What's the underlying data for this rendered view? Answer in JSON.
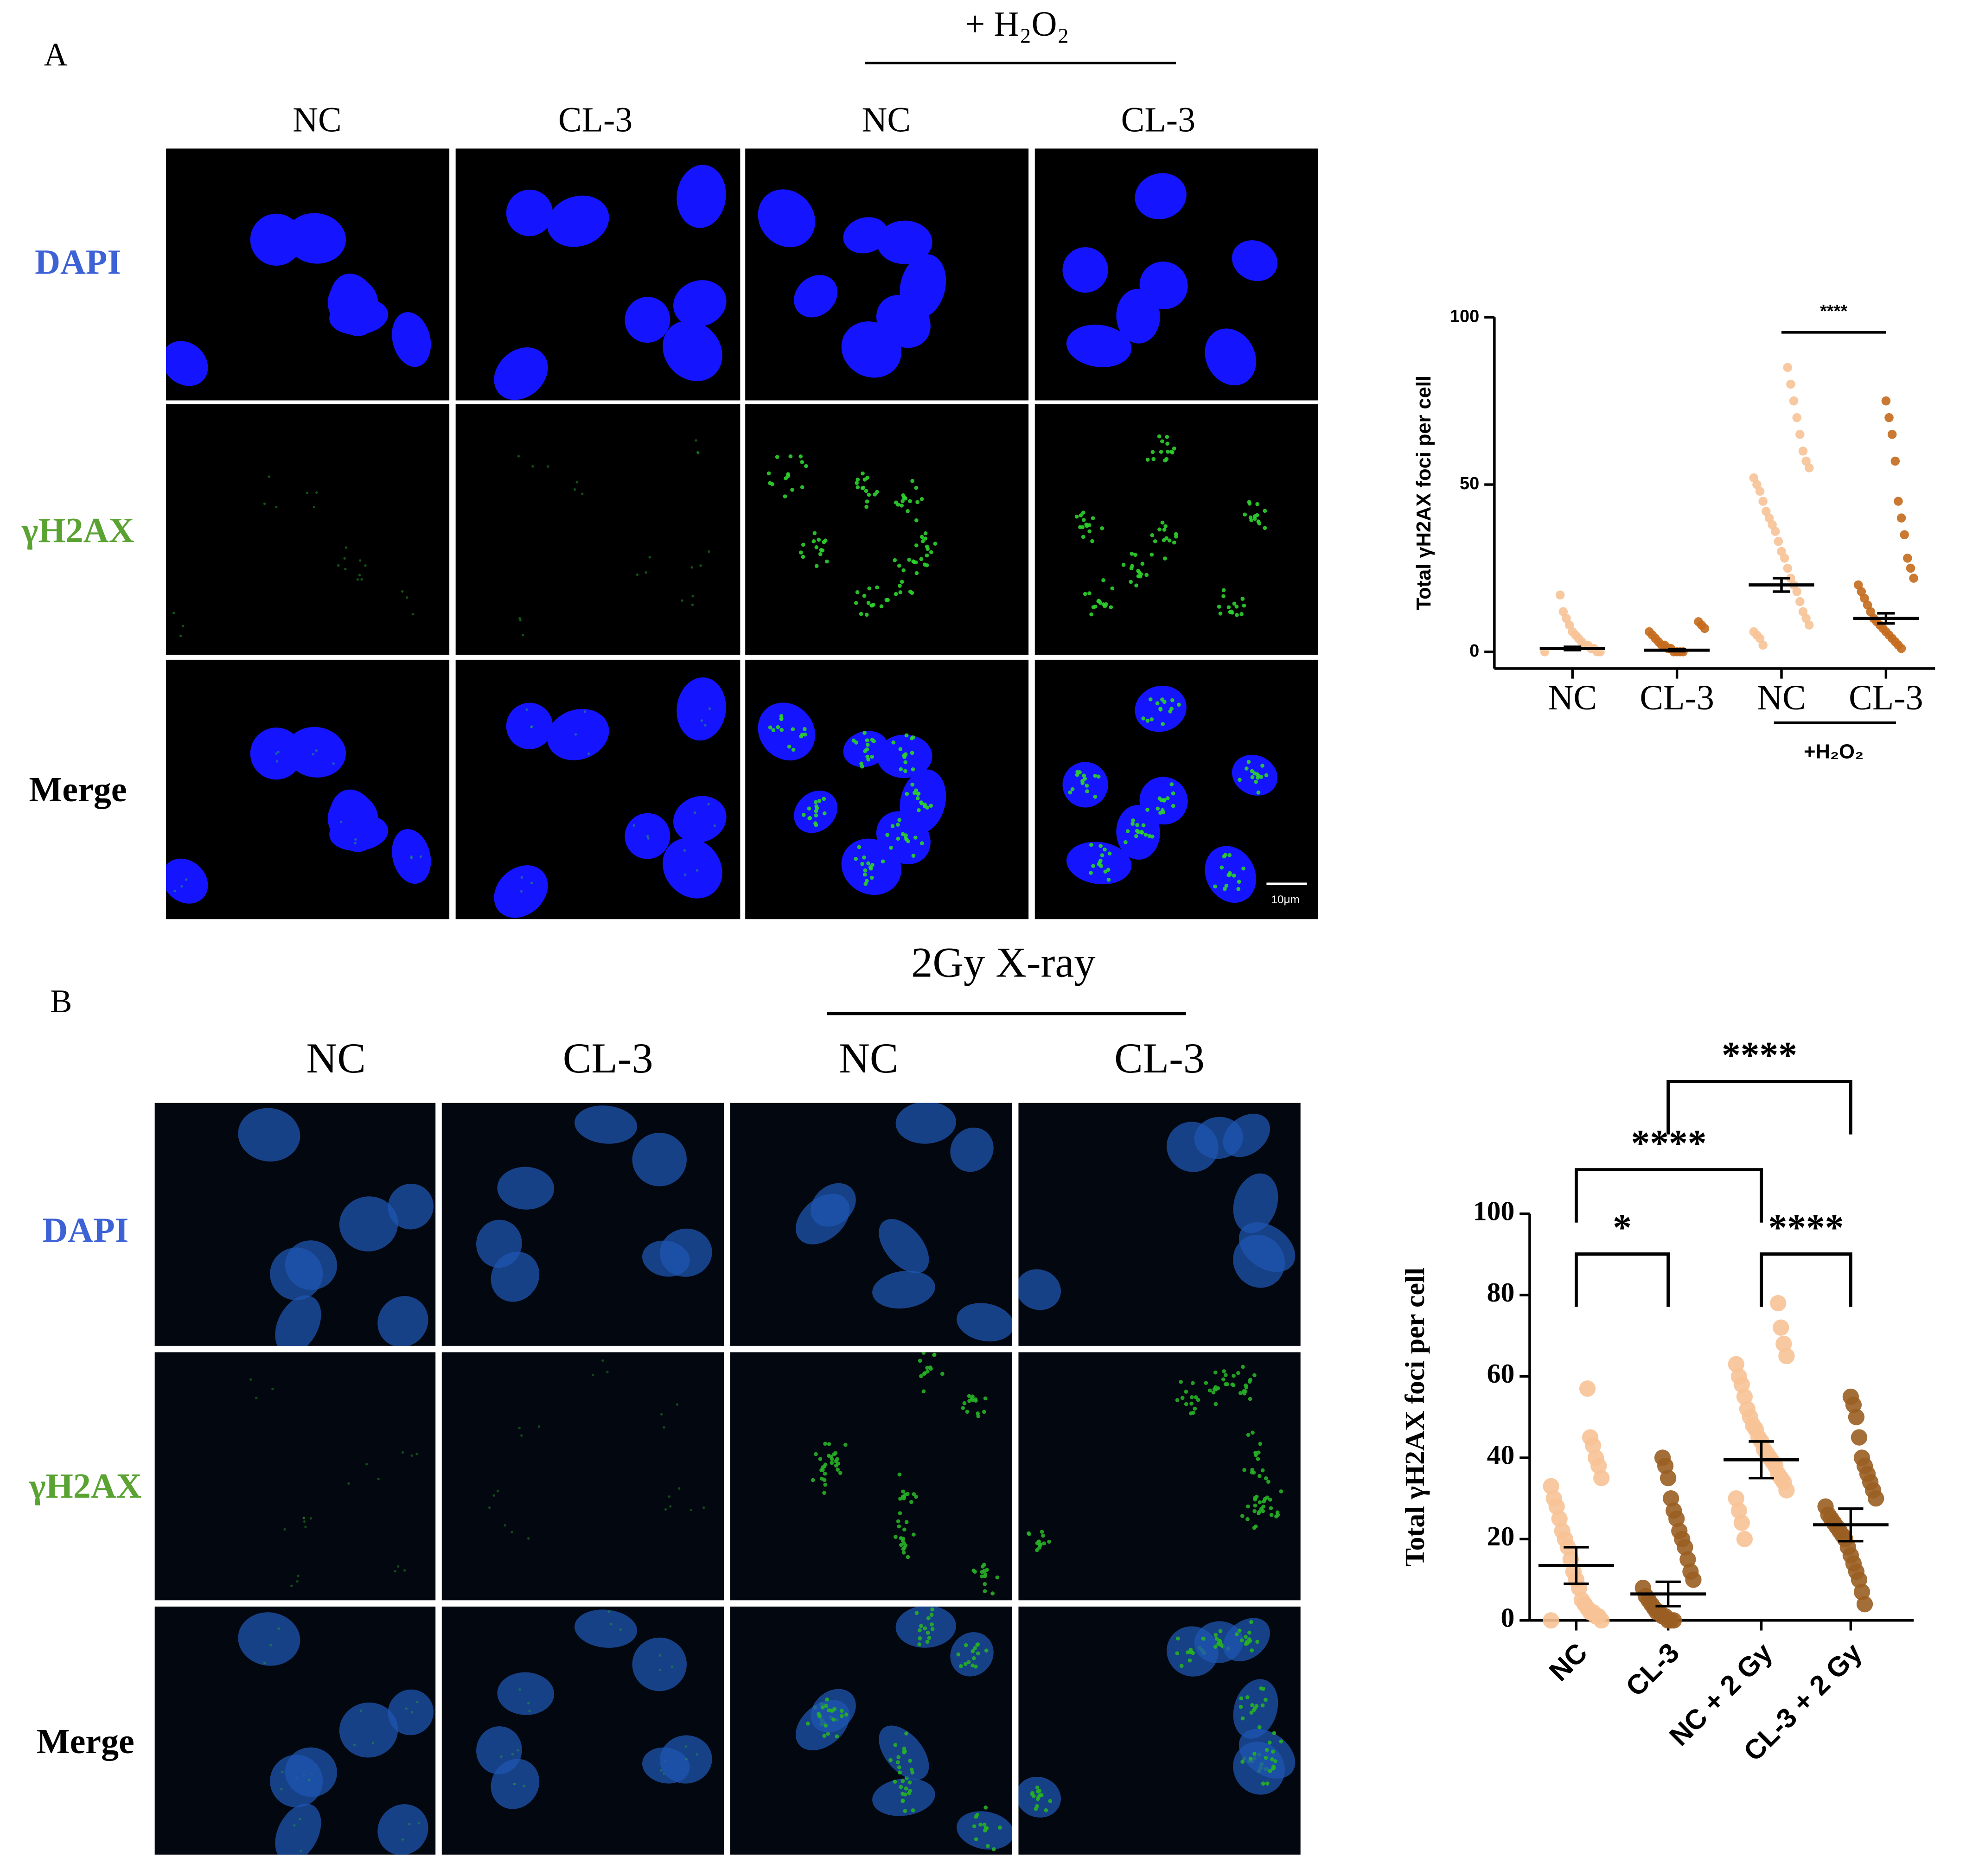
{
  "panel_a": {
    "label": "A",
    "treatment": "+ H₂O₂",
    "columns": [
      "NC",
      "CL-3",
      "NC",
      "CL-3"
    ],
    "rows": [
      "DAPI",
      "γH2AX",
      "Merge"
    ],
    "scale_bar": "10μm"
  },
  "panel_b": {
    "label": "B",
    "treatment": "2Gy X-ray",
    "columns": [
      "NC",
      "CL-3",
      "NC",
      "CL-3"
    ],
    "rows": [
      "DAPI",
      "γH2AX",
      "Merge"
    ]
  },
  "chart_data": [
    {
      "type": "dot_plot",
      "ylabel": "Total γH2AX foci per cell",
      "ylim": [
        -5,
        100
      ],
      "yticks": [
        0,
        50,
        100
      ],
      "categories": [
        "NC",
        "CL-3",
        "NC",
        "CL-3"
      ],
      "colors": [
        "#f7c396",
        "#c46a1c",
        "#f7c396",
        "#c46a1c"
      ],
      "points": [
        [
          0,
          0,
          0,
          1,
          1,
          2,
          2,
          3,
          4,
          5,
          6,
          8,
          10,
          12,
          17
        ],
        [
          0,
          0,
          0,
          0,
          1,
          1,
          2,
          2,
          3,
          4,
          5,
          6,
          7,
          8,
          9
        ],
        [
          2,
          4,
          5,
          6,
          8,
          10,
          12,
          15,
          18,
          20,
          22,
          25,
          28,
          30,
          33,
          36,
          38,
          40,
          42,
          45,
          48,
          50,
          52,
          55,
          57,
          60,
          65,
          70,
          75,
          80,
          85
        ],
        [
          1,
          2,
          3,
          4,
          5,
          6,
          7,
          8,
          9,
          10,
          12,
          14,
          16,
          18,
          20,
          22,
          25,
          28,
          35,
          40,
          45,
          57,
          65,
          70,
          75
        ]
      ],
      "means": [
        1,
        0.5,
        20,
        10
      ],
      "errors": [
        0.5,
        0.3,
        2,
        1.5
      ],
      "group": {
        "label": "+H₂O₂",
        "between": [
          2,
          3
        ]
      },
      "comparisons": [
        {
          "between": [
            2,
            3
          ],
          "label": "****"
        }
      ]
    },
    {
      "type": "dot_plot",
      "ylabel": "Total γH2AX foci per cell",
      "ylim": [
        0,
        100
      ],
      "yticks": [
        0,
        20,
        40,
        60,
        80,
        100
      ],
      "categories": [
        "NC",
        "CL-3",
        "NC + 2 Gy",
        "CL-3 + 2 Gy"
      ],
      "colors": [
        "#f7c396",
        "#9a5e22",
        "#f7c396",
        "#9a5e22"
      ],
      "points": [
        [
          0,
          0,
          1,
          1,
          2,
          2,
          3,
          4,
          5,
          8,
          10,
          12,
          15,
          18,
          20,
          22,
          25,
          28,
          30,
          33,
          35,
          38,
          40,
          43,
          45,
          57
        ],
        [
          0,
          0,
          0,
          1,
          1,
          2,
          2,
          3,
          4,
          5,
          6,
          8,
          10,
          12,
          15,
          18,
          20,
          22,
          25,
          27,
          30,
          35,
          38,
          40
        ],
        [
          20,
          24,
          27,
          30,
          32,
          34,
          35,
          36,
          38,
          39,
          40,
          41,
          42,
          44,
          45,
          47,
          48,
          50,
          52,
          55,
          58,
          60,
          63,
          65,
          68,
          72,
          78
        ],
        [
          4,
          7,
          10,
          12,
          14,
          16,
          18,
          20,
          21,
          22,
          23,
          24,
          25,
          26,
          28,
          30,
          32,
          34,
          36,
          38,
          40,
          45,
          50,
          53,
          55
        ]
      ],
      "means": [
        13.5,
        6.5,
        39.5,
        23.5
      ],
      "errors": [
        4.5,
        3,
        4.5,
        4
      ],
      "comparisons": [
        {
          "between": [
            0,
            1
          ],
          "label": "*"
        },
        {
          "between": [
            0,
            2
          ],
          "label": "****"
        },
        {
          "between": [
            2,
            3
          ],
          "label": "****"
        },
        {
          "between": [
            1,
            3
          ],
          "label": "****"
        }
      ]
    }
  ]
}
